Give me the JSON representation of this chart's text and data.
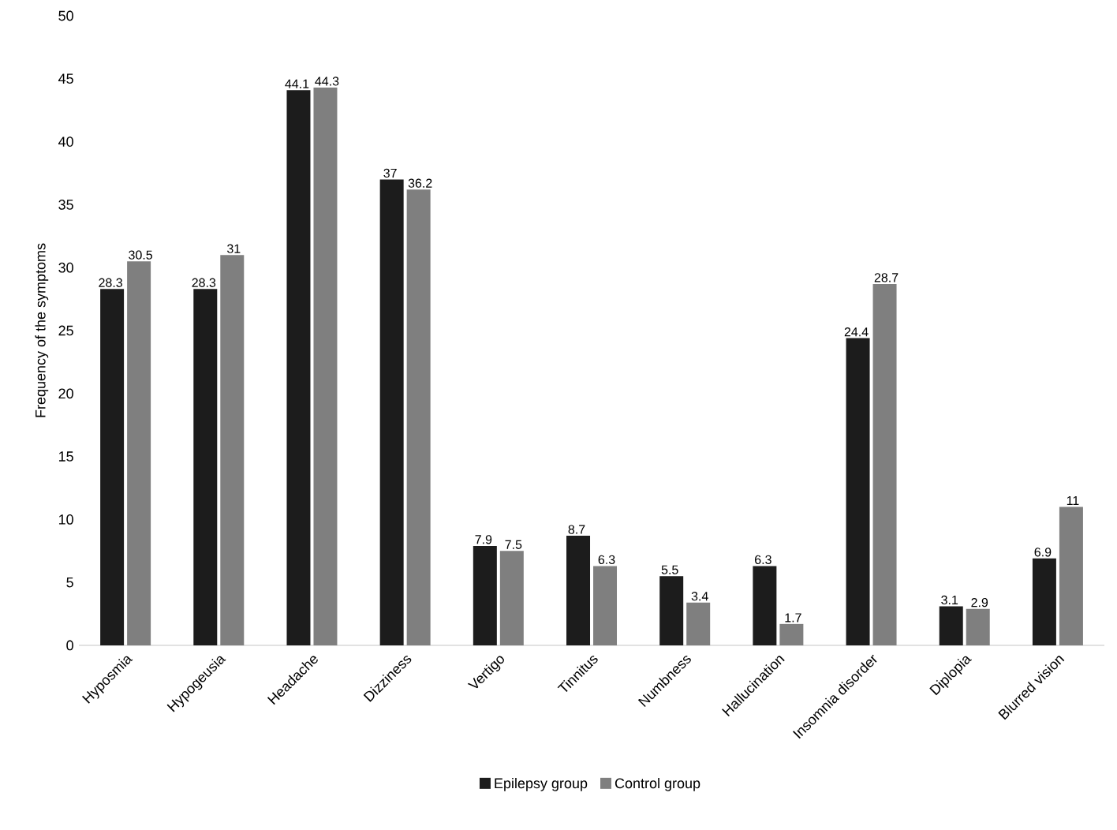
{
  "chart_data": {
    "type": "bar",
    "ylabel": "Frequency of the symptoms",
    "categories": [
      "Hyposmia",
      "Hypogeusia",
      "Headache",
      "Dizziness",
      "Vertigo",
      "Tinnitus",
      "Numbness",
      "Hallucination",
      "Insomnia disorder",
      "Diplopia",
      "Blurred vision"
    ],
    "series": [
      {
        "name": "Epilepsy group",
        "color": "#1c1c1c",
        "values": [
          28.3,
          28.3,
          44.1,
          37,
          7.9,
          8.7,
          5.5,
          6.3,
          24.4,
          3.1,
          6.9
        ]
      },
      {
        "name": "Control group",
        "color": "#7f7f7f",
        "values": [
          30.5,
          31,
          44.3,
          36.2,
          7.5,
          6.3,
          3.4,
          1.7,
          28.7,
          2.9,
          11
        ]
      }
    ],
    "ylim": [
      0,
      50
    ],
    "yticks": [
      0,
      5,
      10,
      15,
      20,
      25,
      30,
      35,
      40,
      45,
      50
    ],
    "data_labels": true,
    "legend": "bottom",
    "grid": false
  }
}
